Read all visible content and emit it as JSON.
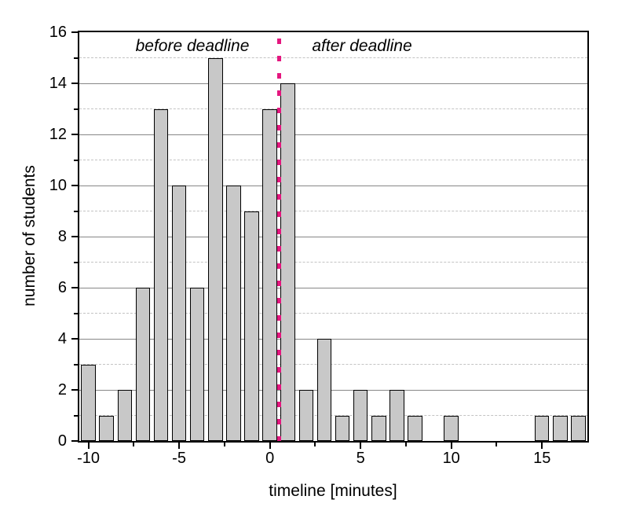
{
  "chart_data": {
    "type": "bar",
    "title": "",
    "xlabel": "timeline [minutes]",
    "ylabel": "number of students",
    "xlim": [
      -10.5,
      17.5
    ],
    "ylim": [
      0,
      16
    ],
    "x": [
      -10,
      -9,
      -8,
      -7,
      -6,
      -5,
      -4,
      -3,
      -2,
      -1,
      0,
      1,
      2,
      3,
      4,
      5,
      6,
      7,
      8,
      10,
      15,
      16,
      17
    ],
    "values": [
      3,
      1,
      2,
      6,
      13,
      10,
      6,
      15,
      10,
      9,
      13,
      14,
      2,
      4,
      1,
      2,
      1,
      2,
      1,
      1,
      1,
      1,
      1
    ],
    "bar_width": 0.8,
    "x_major_ticks": [
      -10,
      -5,
      0,
      5,
      10,
      15
    ],
    "x_minor_ticks": [
      -7.5,
      -2.5,
      2.5,
      7.5,
      12.5
    ],
    "y_major_ticks": [
      0,
      2,
      4,
      6,
      8,
      10,
      12,
      14,
      16
    ],
    "y_minor_ticks": [
      1,
      3,
      5,
      7,
      9,
      11,
      13,
      15
    ],
    "grid": {
      "major_lines": "solid at even y values",
      "minor_lines": "dashed at odd y values",
      "legend": "none"
    },
    "annotations": {
      "before": "before deadline",
      "after": "after deadline"
    },
    "deadline_line": {
      "x": 0.5,
      "style": "dotted",
      "color": "#e4177f"
    },
    "colors": {
      "bar_fill": "#c8c8c8",
      "bar_border": "#000000",
      "major_grid": "#878787",
      "minor_grid": "#c3c3c3",
      "axis_frame": "#000000",
      "text": "#000000"
    }
  }
}
